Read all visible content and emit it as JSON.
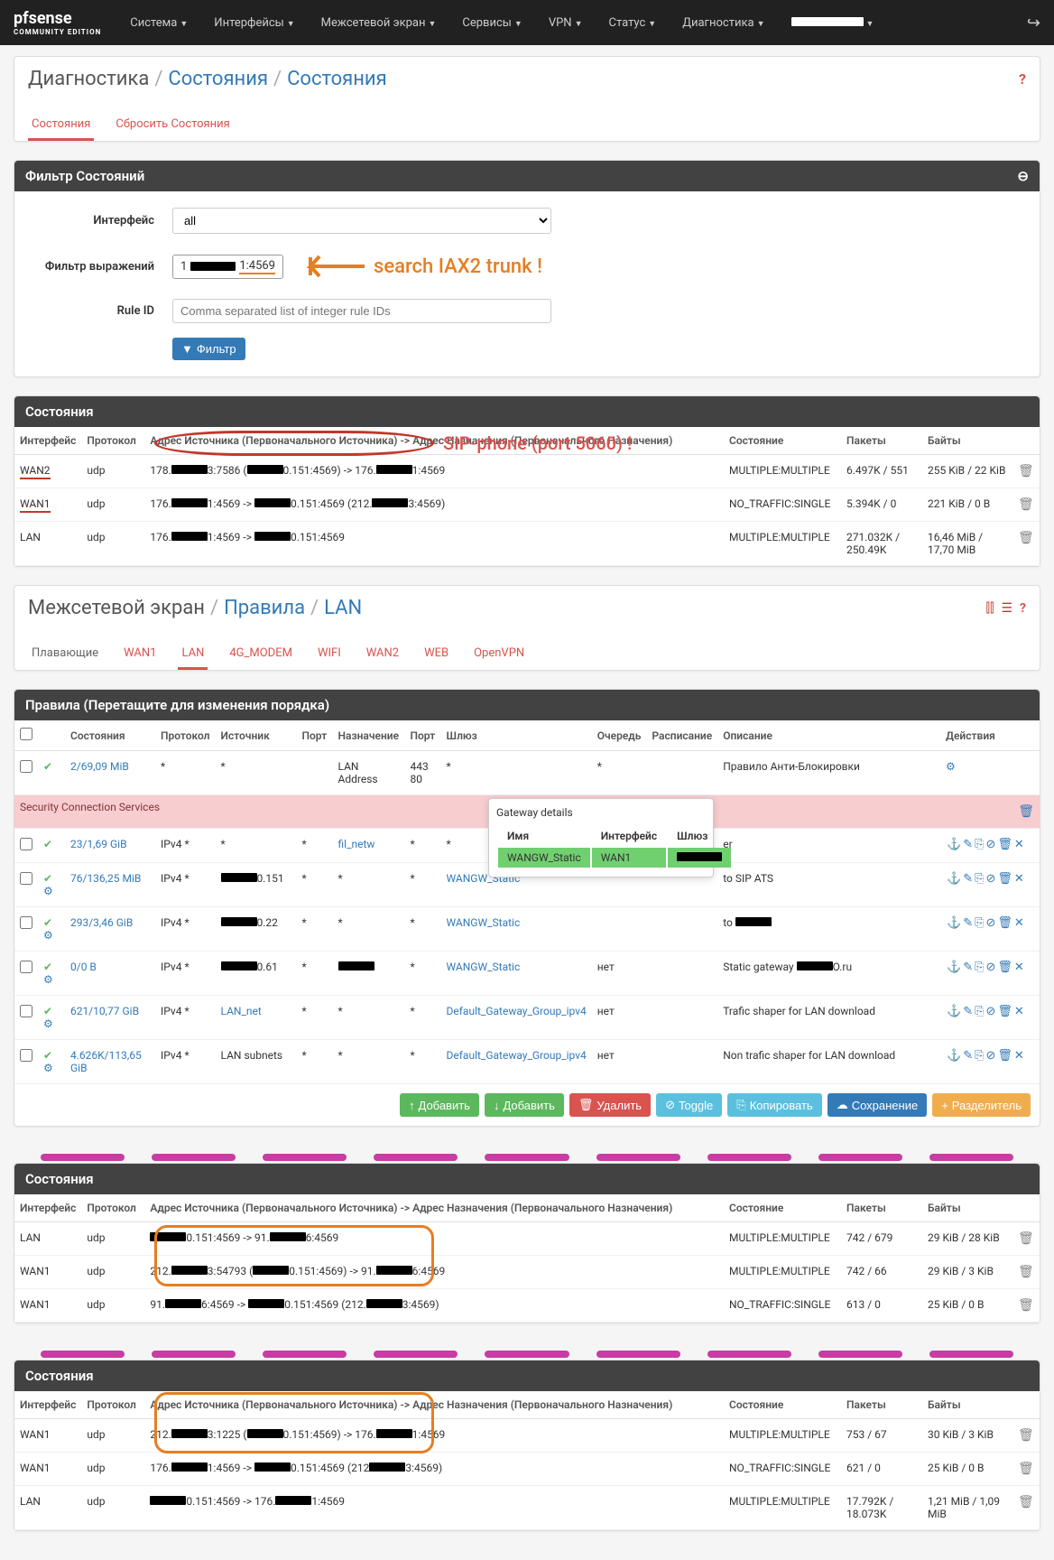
{
  "nav": {
    "logo": "pfsense",
    "logo_sub": "COMMUNITY EDITION",
    "items": [
      "Система",
      "Интерфейсы",
      "Межсетевой экран",
      "Сервисы",
      "VPN",
      "Статус",
      "Диагностика"
    ]
  },
  "page1": {
    "crumb1": "Диагностика",
    "crumb2": "Состояния",
    "crumb3": "Состояния",
    "tabs": {
      "active": "Состояния",
      "other": "Сбросить Состояния"
    },
    "filter": {
      "title": "Фильтр Состояний",
      "iface_label": "Интерфейс",
      "iface_value": "all",
      "expr_label": "Фильтр выражений",
      "expr_prefix": "1",
      "expr_suffix": "1:4569",
      "rule_label": "Rule ID",
      "rule_placeholder": "Comma separated list of integer rule IDs",
      "button": "Фильтр"
    },
    "annotation_search": "search IAX2 trunk !",
    "annotation_sip": "SIP-phone (port 5060) !",
    "states": {
      "title": "Состояния",
      "cols": {
        "iface": "Интерфейс",
        "proto": "Протокол",
        "addr": "Адрес Источника (Первоначального Источника) -> Адрес Назначения (Первоначального Назначения)",
        "state": "Состояние",
        "packets": "Пакеты",
        "bytes": "Байты"
      },
      "rows": [
        {
          "iface": "WAN2",
          "proto": "udp",
          "addr_parts": [
            "178.",
            "3:7586 (",
            "0.151:4569) -> 176.",
            "1:4569"
          ],
          "state": "MULTIPLE:MULTIPLE",
          "packets": "6.497K / 551",
          "bytes": "255 KiB / 22 KiB",
          "redline": true
        },
        {
          "iface": "WAN1",
          "proto": "udp",
          "addr_parts": [
            "176.",
            "1:4569 -> ",
            "0.151:4569 (212.",
            "3:4569)"
          ],
          "state": "NO_TRAFFIC:SINGLE",
          "packets": "5.394K / 0",
          "bytes": "221 KiB / 0 B",
          "redline": true
        },
        {
          "iface": "LAN",
          "proto": "udp",
          "addr_parts": [
            "176.",
            "1:4569 -> ",
            "0.151:4569"
          ],
          "state": "MULTIPLE:MULTIPLE",
          "packets": "271.032K / 250.49K",
          "bytes": "16,46 MiB / 17,70 MiB"
        }
      ]
    }
  },
  "page2": {
    "crumb1": "Межсетевой экран",
    "crumb2": "Правила",
    "crumb3": "LAN",
    "tabs": [
      "Плавающие",
      "WAN1",
      "LAN",
      "4G_MODEM",
      "WIFI",
      "WAN2",
      "WEB",
      "OpenVPN"
    ],
    "active_tab": "LAN",
    "title": "Правила (Перетащите для изменения порядка)",
    "cols": {
      "state": "Состояния",
      "proto": "Протокол",
      "src": "Источник",
      "port": "Порт",
      "dst": "Назначение",
      "dport": "Порт",
      "gw": "Шлюз",
      "queue": "Очередь",
      "sched": "Расписание",
      "desc": "Описание",
      "act": "Действия"
    },
    "rows": [
      {
        "state": "2/69,09 MiB",
        "proto": "*",
        "src": "*",
        "port": "",
        "dst": "LAN Address",
        "dport": "443 80",
        "gw": "*",
        "queue": "*",
        "desc": "Правило Анти-Блокировки",
        "gear": true
      },
      {
        "section": "Security Connection Services",
        "pink": true
      },
      {
        "state": "23/1,69 GiB",
        "proto": "IPv4 *",
        "src": "*",
        "port": "*",
        "dst": "fil_netw",
        "dport": "*",
        "gw": "*",
        "queue": "",
        "desc": "er",
        "link_dst": true
      },
      {
        "state": "76/136,25 MiB",
        "proto": "IPv4 *",
        "src_redact": "0.151",
        "port": "*",
        "dst": "*",
        "dport": "*",
        "gw": "WANGW_Static",
        "queue": "",
        "desc": "to SIP ATS",
        "gear2": true
      },
      {
        "state": "293/3,46 GiB",
        "proto": "IPv4 *",
        "src_redact": "0.22",
        "port": "*",
        "dst": "*",
        "dport": "*",
        "gw": "WANGW_Static",
        "queue": "",
        "desc_parts": [
          "to ",
          ""
        ],
        "gear2": true
      },
      {
        "state": "0/0 B",
        "proto": "IPv4 *",
        "src_redact": "0.61",
        "port": "*",
        "dst_redact": true,
        "dport": "*",
        "gw": "WANGW_Static",
        "queue": "нет",
        "desc_parts": [
          "Static gateway ",
          "O.ru"
        ],
        "gear2": true
      },
      {
        "state": "621/10,77 GiB",
        "proto": "IPv4 *",
        "src": "LAN_net",
        "port": "*",
        "dst": "*",
        "dport": "*",
        "gw": "Default_Gateway_Group_ipv4",
        "queue": "нет",
        "desc": "Trafic shaper for LAN download",
        "link_src": true,
        "link_gw": true,
        "gear2": true
      },
      {
        "state": "4.626K/113,65 GiB",
        "proto": "IPv4 *",
        "src": "LAN subnets",
        "port": "*",
        "dst": "*",
        "dport": "*",
        "gw": "Default_Gateway_Group_ipv4",
        "queue": "нет",
        "desc": "Non trafic shaper for LAN download",
        "link_gw": true,
        "gear2": true
      }
    ],
    "tooltip": {
      "title": "Gateway details",
      "col_name": "Имя",
      "col_iface": "Интерфейс",
      "col_gw": "Шлюз",
      "val_name": "WANGW_Static",
      "val_iface": "WAN1"
    },
    "buttons": {
      "add1": "Добавить",
      "add2": "Добавить",
      "del": "Удалить",
      "toggle": "Toggle",
      "copy": "Копировать",
      "save": "Сохранение",
      "sep": "Разделитель"
    }
  },
  "states2": {
    "title": "Состояния",
    "rows": [
      {
        "iface": "LAN",
        "proto": "udp",
        "addr_parts": [
          "",
          "0.151:4569 -> 91.",
          "6:4569"
        ],
        "state": "MULTIPLE:MULTIPLE",
        "packets": "742 / 679",
        "bytes": "29 KiB / 28 KiB"
      },
      {
        "iface": "WAN1",
        "proto": "udp",
        "addr_parts": [
          "212.",
          "3:54793 (",
          "0.151:4569) -> 91.",
          "6:4569"
        ],
        "state": "MULTIPLE:MULTIPLE",
        "packets": "742 / 66",
        "bytes": "29 KiB / 3 KiB",
        "box": "top"
      },
      {
        "iface": "WAN1",
        "proto": "udp",
        "addr_parts": [
          "91.",
          "6:4569 -> ",
          "0.151:4569 (212.",
          "3:4569)"
        ],
        "state": "NO_TRAFFIC:SINGLE",
        "packets": "613 / 0",
        "bytes": "25 KiB / 0 B",
        "box": "bot"
      }
    ]
  },
  "states3": {
    "title": "Состояния",
    "rows": [
      {
        "iface": "WAN1",
        "proto": "udp",
        "addr_parts": [
          "212.",
          "3:1225 (",
          "0.151:4569) -> 176.",
          "1:4569"
        ],
        "state": "MULTIPLE:MULTIPLE",
        "packets": "753 / 67",
        "bytes": "30 KiB / 3 KiB",
        "box": "top"
      },
      {
        "iface": "WAN1",
        "proto": "udp",
        "addr_parts": [
          "176.",
          "1:4569 -> ",
          "0.151:4569 (212",
          "3:4569)"
        ],
        "state": "NO_TRAFFIC:SINGLE",
        "packets": "621 / 0",
        "bytes": "25 KiB / 0 B",
        "box": "bot"
      },
      {
        "iface": "LAN",
        "proto": "udp",
        "addr_parts": [
          "",
          "0.151:4569 -> 176.",
          "1:4569"
        ],
        "state": "MULTIPLE:MULTIPLE",
        "packets": "17.792K / 18.073K",
        "bytes": "1,21 MiB / 1,09 MiB"
      }
    ]
  },
  "colors": {
    "orange": "#e67e22",
    "red": "#d9534f",
    "pink": "#c93ca3",
    "navbar": "#212121",
    "heading": "#424242",
    "link": "#337ab7"
  }
}
